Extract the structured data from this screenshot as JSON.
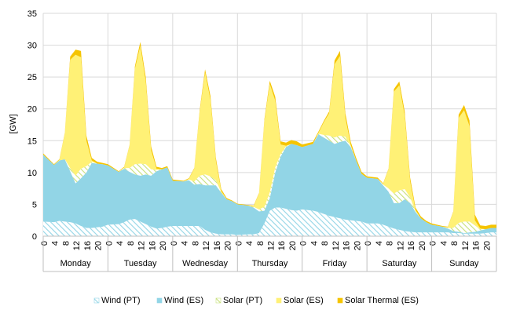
{
  "chart_data": {
    "type": "area",
    "stacked": true,
    "ylabel": "[GW]",
    "ylim": [
      0,
      35
    ],
    "yticks": [
      0,
      5,
      10,
      15,
      20,
      25,
      30,
      35
    ],
    "grid": "horizontal",
    "legend_position": "bottom",
    "days": [
      "Monday",
      "Tuesday",
      "Wednesday",
      "Thursday",
      "Friday",
      "Saturday",
      "Sunday"
    ],
    "hour_ticks": [
      "0",
      "4",
      "8",
      "12",
      "16",
      "20"
    ],
    "hours_sampled": [
      0,
      4,
      6,
      8,
      10,
      12,
      14,
      16,
      18,
      20,
      22
    ],
    "series": [
      {
        "name": "Wind (PT)",
        "color": "#92D5E6",
        "pattern": "hatch",
        "values": [
          [
            2.3,
            2.2,
            2.4,
            2.3,
            2.2,
            2.0,
            1.6,
            1.3,
            1.3,
            1.4,
            1.5
          ],
          [
            1.8,
            1.9,
            2.2,
            2.6,
            2.7,
            2.3,
            1.9,
            1.5,
            1.2,
            1.3,
            1.5
          ],
          [
            1.6,
            1.6,
            1.6,
            1.6,
            1.6,
            1.0,
            0.6,
            0.4,
            0.3,
            0.3,
            0.3
          ],
          [
            0.2,
            0.3,
            0.3,
            0.5,
            2.0,
            4.0,
            4.5,
            4.5,
            4.3,
            4.1,
            4.0
          ],
          [
            4.2,
            4.0,
            3.8,
            3.5,
            3.2,
            3.0,
            2.8,
            2.6,
            2.5,
            2.4,
            2.3
          ],
          [
            2.0,
            2.0,
            1.8,
            1.5,
            1.2,
            1.0,
            0.8,
            0.7,
            0.6,
            0.6,
            0.6
          ],
          [
            0.6,
            0.6,
            0.6,
            0.5,
            0.5,
            0.4,
            0.4,
            0.4,
            0.4,
            0.5,
            0.6
          ]
        ]
      },
      {
        "name": "Wind (ES)",
        "color": "#92D5E6",
        "values": [
          [
            10.5,
            9.0,
            9.5,
            9.8,
            8.0,
            6.3,
            7.5,
            8.7,
            10.2,
            10.0,
            9.8
          ],
          [
            9.3,
            8.2,
            8.4,
            7.5,
            7.0,
            7.2,
            7.8,
            8.0,
            9.0,
            9.2,
            9.3
          ],
          [
            7.1,
            7.0,
            7.2,
            6.5,
            6.6,
            7.0,
            7.4,
            7.6,
            6.5,
            5.5,
            5.2
          ],
          [
            4.8,
            4.5,
            4.2,
            3.4,
            2.0,
            2.0,
            5.5,
            8.0,
            9.7,
            10.4,
            10.3
          ],
          [
            9.8,
            10.5,
            12.2,
            12.0,
            11.8,
            11.5,
            12.0,
            12.4,
            11.5,
            9.5,
            7.5
          ],
          [
            7.2,
            7.0,
            6.2,
            5.5,
            4.0,
            4.2,
            5.0,
            4.5,
            3.2,
            2.2,
            1.6
          ],
          [
            1.2,
            0.9,
            0.6,
            0.3,
            0.2,
            0.1,
            0.2,
            0.3,
            0.5,
            0.6,
            0.7
          ]
        ]
      },
      {
        "name": "Solar (PT)",
        "color": "#C7E07A",
        "pattern": "hatch",
        "values": [
          [
            0,
            0,
            0,
            0,
            0.5,
            1.2,
            1.5,
            1.0,
            0.2,
            0,
            0
          ],
          [
            0,
            0,
            0.1,
            0.6,
            1.6,
            1.9,
            1.6,
            1.0,
            0.2,
            0,
            0
          ],
          [
            0,
            0,
            0.1,
            0.5,
            1.3,
            1.7,
            1.4,
            0.8,
            0.1,
            0,
            0
          ],
          [
            0,
            0,
            0.1,
            0.3,
            0.6,
            0.9,
            0.8,
            0.4,
            0.1,
            0,
            0
          ],
          [
            0,
            0,
            0.1,
            0.4,
            0.8,
            1.0,
            1.0,
            0.6,
            0.1,
            0,
            0
          ],
          [
            0,
            0,
            0.1,
            0.5,
            1.5,
            2.0,
            1.6,
            0.9,
            0.1,
            0,
            0
          ],
          [
            0,
            0,
            0.1,
            0.5,
            1.4,
            1.8,
            1.7,
            1.0,
            0.2,
            0,
            0
          ]
        ]
      },
      {
        "name": "Solar (ES)",
        "color": "#FFF176",
        "values": [
          [
            0,
            0,
            0.1,
            4.0,
            17.0,
            19.0,
            17.5,
            4.0,
            0.2,
            0,
            0
          ],
          [
            0,
            0,
            0.1,
            3.5,
            15.0,
            18.5,
            13.0,
            3.0,
            0.2,
            0,
            0
          ],
          [
            0,
            0,
            0.1,
            2.0,
            10.0,
            16.0,
            12.0,
            3.0,
            0.2,
            0,
            0
          ],
          [
            0,
            0,
            0.1,
            2.5,
            13.5,
            17.0,
            10.5,
            1.5,
            0.1,
            0,
            0
          ],
          [
            0,
            0,
            0.1,
            2.0,
            3.5,
            11.5,
            12.5,
            3.0,
            0.2,
            0,
            0
          ],
          [
            0,
            0,
            0.1,
            3.0,
            16.0,
            16.5,
            11.5,
            2.5,
            0.2,
            0,
            0
          ],
          [
            0,
            0,
            0.1,
            2.5,
            16.5,
            17.5,
            15.0,
            0.8,
            0.1,
            0,
            0
          ]
        ]
      },
      {
        "name": "Solar Thermal (ES)",
        "color": "#F5C400",
        "values": [
          [
            0.2,
            0.1,
            0.1,
            0.1,
            0.5,
            0.8,
            1.0,
            0.8,
            0.4,
            0.3,
            0.2
          ],
          [
            0.2,
            0.1,
            0.1,
            0.1,
            0.4,
            0.6,
            0.7,
            0.6,
            0.3,
            0.2,
            0.2
          ],
          [
            0.2,
            0.1,
            0.1,
            0.1,
            0.3,
            0.5,
            0.6,
            0.5,
            0.3,
            0.2,
            0.1
          ],
          [
            0.1,
            0.1,
            0.1,
            0.1,
            0.3,
            0.5,
            0.6,
            0.5,
            0.5,
            0.6,
            0.6
          ],
          [
            0.4,
            0.3,
            0.2,
            0.2,
            0.3,
            0.6,
            0.8,
            0.7,
            0.5,
            0.4,
            0.3
          ],
          [
            0.2,
            0.2,
            0.1,
            0.1,
            0.4,
            0.6,
            0.7,
            0.6,
            0.4,
            0.3,
            0.2
          ],
          [
            0.2,
            0.1,
            0.1,
            0.1,
            0.5,
            0.8,
            0.9,
            0.9,
            0.5,
            0.5,
            0.5
          ]
        ]
      }
    ]
  }
}
